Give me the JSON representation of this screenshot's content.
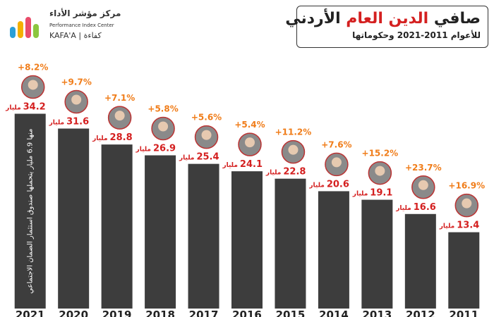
{
  "header": {
    "title_parts": [
      "صافي",
      "الدين العام",
      "الأردني"
    ],
    "subtitle": "للأعوام 2011-2021 وحكوماتها"
  },
  "logo": {
    "name_ar": "مركز مؤشر الأداء",
    "name_en": "Performance Index Center",
    "brand": "KAFA'A | كفاءة"
  },
  "chart_data": {
    "type": "bar",
    "categories": [
      "2021",
      "2020",
      "2019",
      "2018",
      "2017",
      "2016",
      "2015",
      "2014",
      "2013",
      "2012",
      "2011"
    ],
    "values": [
      34.2,
      31.6,
      28.8,
      26.9,
      25.4,
      24.1,
      22.8,
      20.6,
      19.1,
      16.6,
      13.4
    ],
    "unit": "مليار",
    "growth_labels": [
      "+8.2%",
      "+9.7%",
      "+7.1%",
      "+5.8%",
      "+5.6%",
      "+5.4%",
      "+11.2%",
      "+7.6%",
      "+15.2%",
      "+23.7%",
      "+16.9%"
    ],
    "bar_note": "منها 6.9 مليار يتحملها صندوق استثمار الضمان الاجتماعي",
    "color": "#3d3d3d",
    "label_color": "#d42020",
    "growth_color": "#f07d1a",
    "ylim": [
      0,
      35
    ]
  }
}
